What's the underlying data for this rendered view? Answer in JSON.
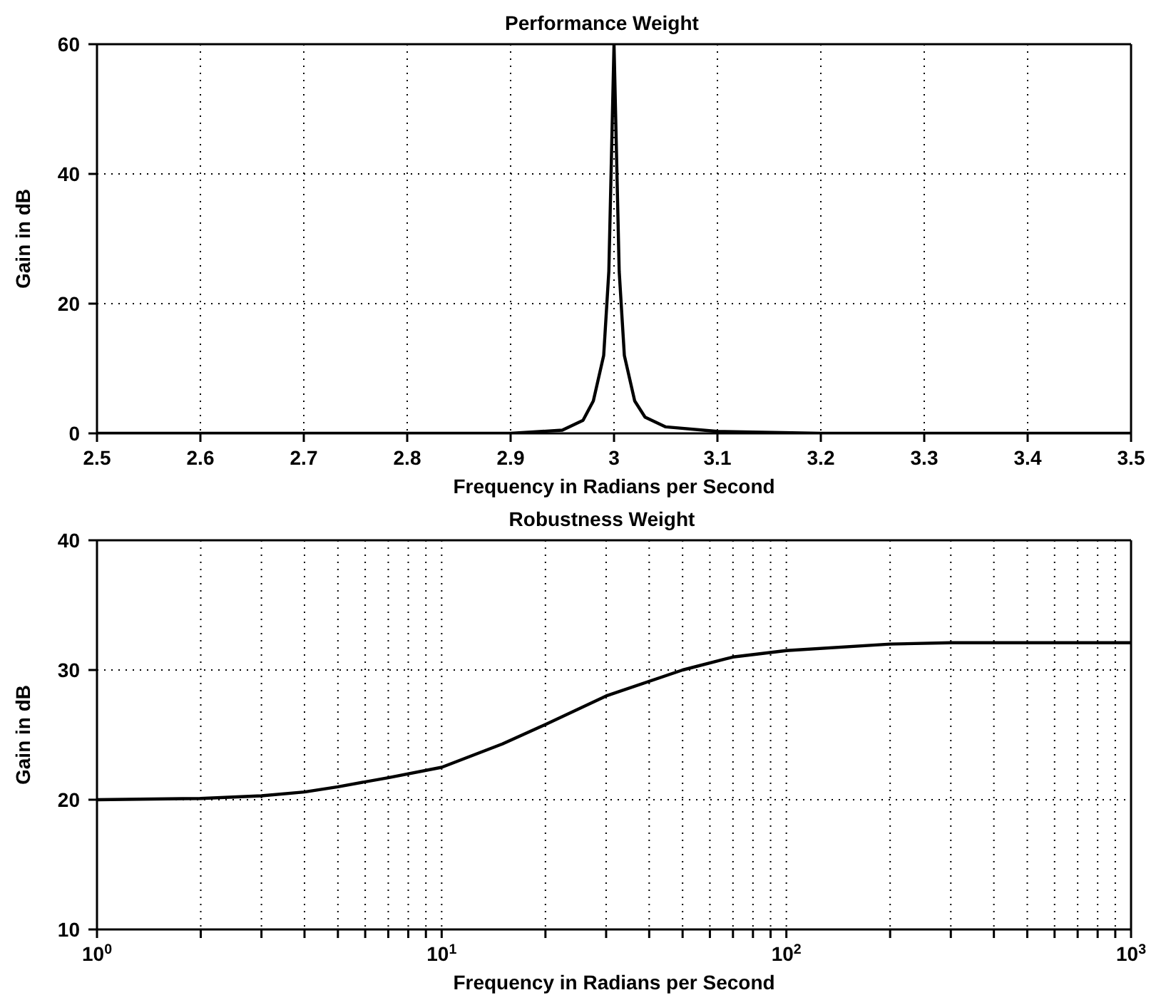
{
  "chart_data": [
    {
      "type": "line",
      "title": "Performance Weight",
      "xlabel": "Frequency in Radians per Second",
      "ylabel": "Gain in dB",
      "x": [
        2.5,
        2.6,
        2.7,
        2.8,
        2.9,
        2.95,
        2.97,
        2.98,
        2.99,
        2.995,
        3.0,
        3.005,
        3.01,
        3.02,
        3.03,
        3.05,
        3.1,
        3.2,
        3.3,
        3.4,
        3.5
      ],
      "series": [
        {
          "color": "#000000",
          "values": [
            0,
            0,
            0,
            0,
            0,
            0.5,
            2,
            5,
            12,
            25,
            60,
            25,
            12,
            5,
            2.5,
            1,
            0.3,
            0,
            0,
            0,
            0
          ]
        }
      ],
      "xlim": [
        2.5,
        3.5
      ],
      "xticks": [
        2.5,
        2.6,
        2.7,
        2.8,
        2.9,
        3,
        3.1,
        3.2,
        3.3,
        3.4,
        3.5
      ],
      "ylim": [
        0,
        60
      ],
      "yticks": [
        0,
        20,
        40,
        60
      ],
      "grid": true
    },
    {
      "type": "line",
      "title": "Robustness Weight",
      "xlabel": "Frequency in Radians per Second",
      "ylabel": "Gain in dB",
      "x": [
        1,
        2,
        3,
        4,
        5,
        7,
        10,
        15,
        20,
        30,
        50,
        70,
        100,
        200,
        300,
        500,
        1000
      ],
      "series": [
        {
          "color": "#000000",
          "values": [
            20,
            20.1,
            20.3,
            20.6,
            21,
            21.7,
            22.5,
            24.3,
            25.8,
            28,
            30,
            31,
            31.5,
            32,
            32.1,
            32.1,
            32.1
          ]
        }
      ],
      "log": "x",
      "xlim": [
        1,
        1000
      ],
      "xticks": [
        {
          "value": 1,
          "label": "10$^{0}$"
        },
        {
          "value": 2,
          "label": null
        },
        {
          "value": 3,
          "label": null
        },
        {
          "value": 4,
          "label": null
        },
        {
          "value": 5,
          "label": null
        },
        {
          "value": 6,
          "label": null
        },
        {
          "value": 7,
          "label": null
        },
        {
          "value": 8,
          "label": null
        },
        {
          "value": 9,
          "label": null
        },
        {
          "value": 10,
          "label": "10$^{1}$"
        },
        {
          "value": 20,
          "label": null
        },
        {
          "value": 30,
          "label": null
        },
        {
          "value": 40,
          "label": null
        },
        {
          "value": 50,
          "label": null
        },
        {
          "value": 60,
          "label": null
        },
        {
          "value": 70,
          "label": null
        },
        {
          "value": 80,
          "label": null
        },
        {
          "value": 90,
          "label": null
        },
        {
          "value": 100,
          "label": "10$^{2}$"
        },
        {
          "value": 200,
          "label": null
        },
        {
          "value": 300,
          "label": null
        },
        {
          "value": 400,
          "label": null
        },
        {
          "value": 500,
          "label": null
        },
        {
          "value": 600,
          "label": null
        },
        {
          "value": 700,
          "label": null
        },
        {
          "value": 800,
          "label": null
        },
        {
          "value": 900,
          "label": null
        },
        {
          "value": 1000,
          "label": "10$^{3}$"
        }
      ],
      "ylim": [
        10,
        40
      ],
      "yticks": [
        10,
        20,
        30,
        40
      ],
      "grid": true
    }
  ]
}
